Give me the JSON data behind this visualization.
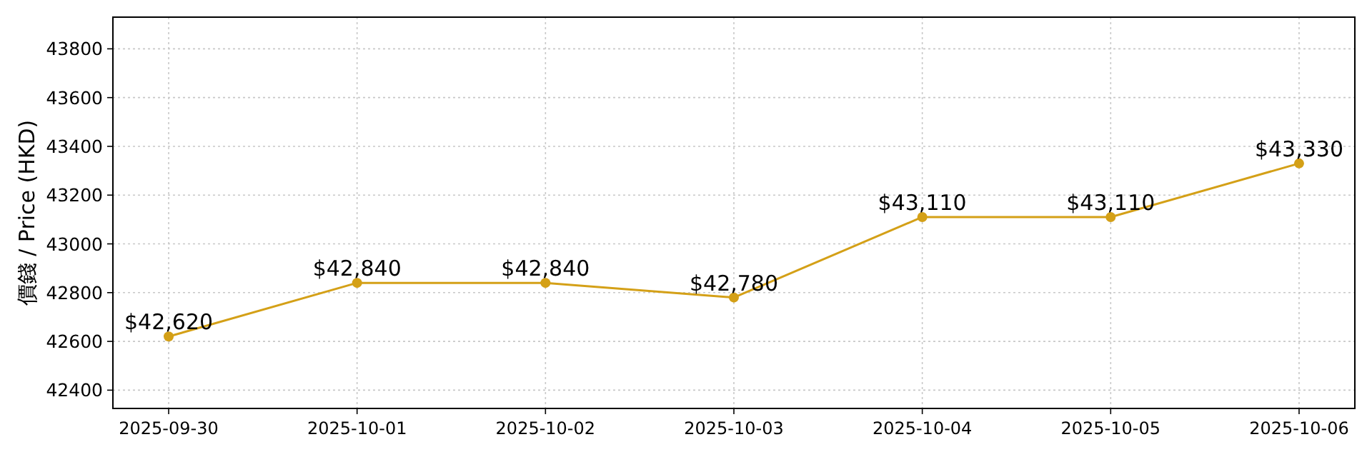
{
  "chart_data": {
    "type": "line",
    "ylabel": "價錢 / Price (HKD)",
    "categories": [
      "2025-09-30",
      "2025-10-01",
      "2025-10-02",
      "2025-10-03",
      "2025-10-04",
      "2025-10-05",
      "2025-10-06"
    ],
    "series": [
      {
        "color": "#d4a017",
        "values": [
          42620,
          42840,
          42840,
          42780,
          43110,
          43110,
          43330
        ],
        "value_labels": [
          "$42,620",
          "$42,840",
          "$42,840",
          "$42,780",
          "$43,110",
          "$43,110",
          "$43,330"
        ]
      }
    ],
    "ylim": [
      42325,
      43930
    ],
    "yticks": [
      42400,
      42600,
      42800,
      43000,
      43200,
      43400,
      43600,
      43800
    ],
    "grid": true,
    "marker": "circle",
    "line_style": "solid"
  }
}
